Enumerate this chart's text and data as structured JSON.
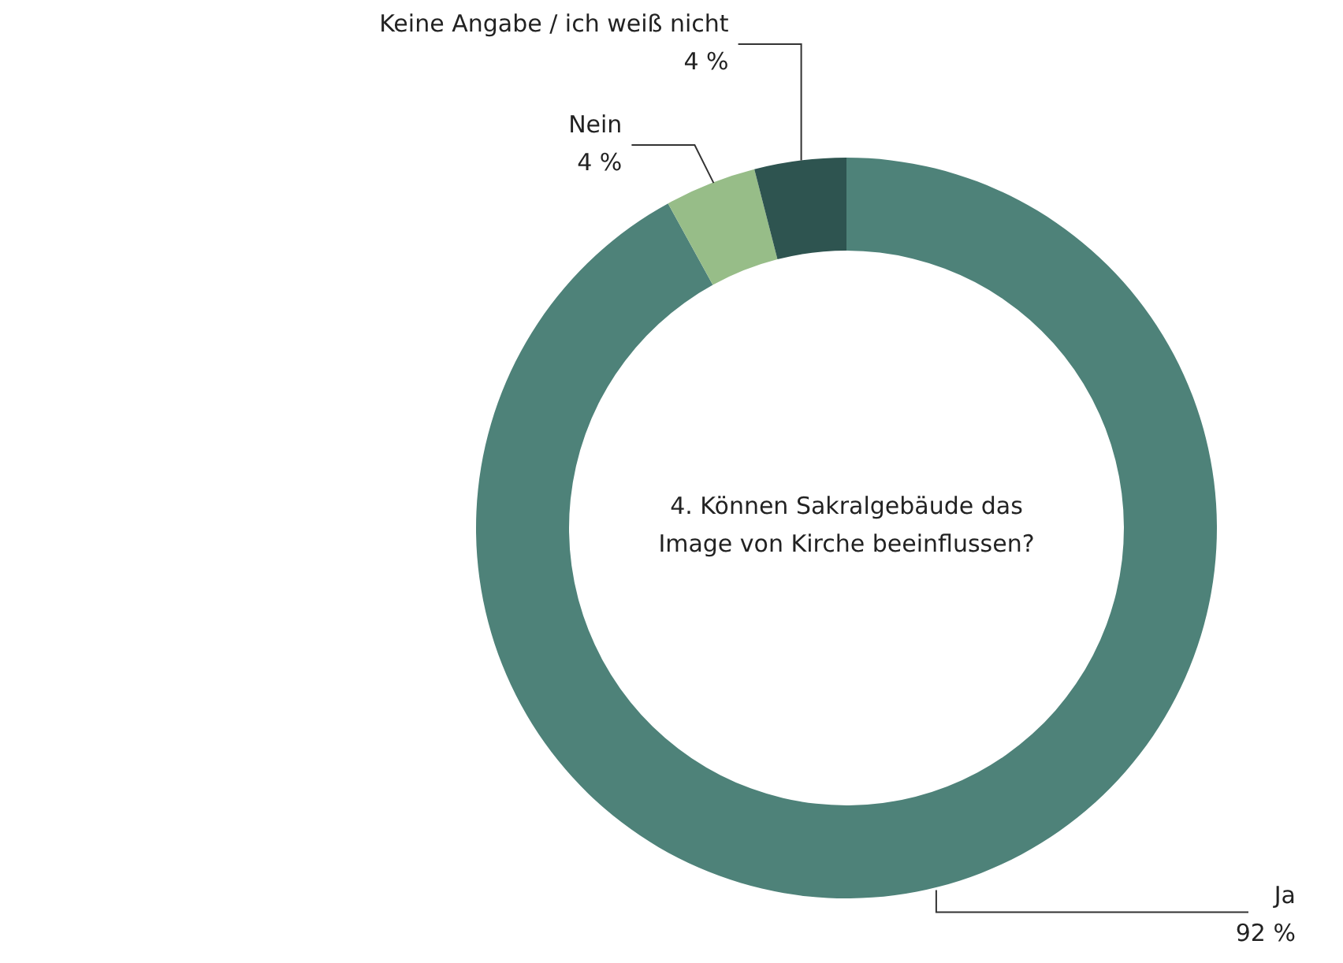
{
  "chart_data": {
    "type": "donut",
    "title": "4. Können Sakralgebäude das Image von Kirche beeinflussen?",
    "categories": [
      "Ja",
      "Nein",
      "Keine Angabe / ich weiß nicht"
    ],
    "values": [
      92,
      4,
      4
    ],
    "colors": [
      "#4e8279",
      "#97bd88",
      "#2e5450"
    ],
    "value_labels": [
      "92 %",
      "4 %",
      "4 %"
    ]
  }
}
